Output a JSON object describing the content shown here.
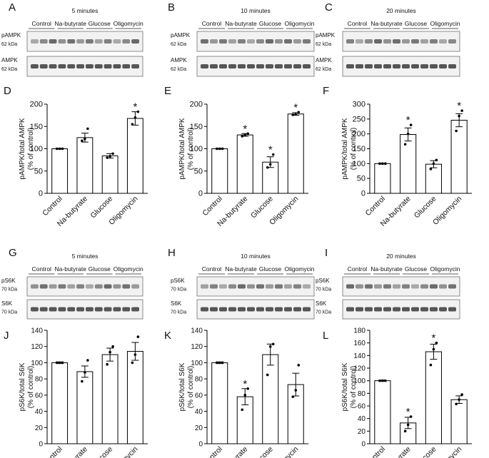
{
  "figure": {
    "kda_62": "62 kDa",
    "kda_70": "70 kDa",
    "groups": [
      "Control",
      "Na-butyrate",
      "Glucose",
      "Oligomycin"
    ],
    "blot_sets": [
      {
        "panel": "A",
        "time": "5 minutes",
        "bands": [
          "pAMPK",
          "AMPK"
        ],
        "kda": "62 kDa"
      },
      {
        "panel": "B",
        "time": "10 minutes",
        "bands": [
          "pAMPK",
          "AMPK"
        ],
        "kda": "62 kDa"
      },
      {
        "panel": "C",
        "time": "20 minutes",
        "bands": [
          "pAMPK",
          "AMPK"
        ],
        "kda": "62 kDa"
      },
      {
        "panel": "G",
        "time": "5 minutes",
        "bands": [
          "pS6K",
          "S6K"
        ],
        "kda": "70 kDa"
      },
      {
        "panel": "H",
        "time": "10 minutes",
        "bands": [
          "pS6K",
          "S6K"
        ],
        "kda": "70 kDa"
      },
      {
        "panel": "I",
        "time": "20 minutes",
        "bands": [
          "pS6K",
          "S6K"
        ],
        "kda": "70 kDa"
      }
    ]
  },
  "chart_data": [
    {
      "panel": "D",
      "type": "bar",
      "ylabel": [
        "pAMPK/total AMPK",
        "(% of control)"
      ],
      "categories": [
        "Control",
        "Na-butyrate",
        "Glucose",
        "Oligomycin"
      ],
      "ylim": [
        0,
        200
      ],
      "yticks": [
        0,
        50,
        100,
        150,
        200
      ],
      "values": [
        100,
        125,
        84,
        168
      ],
      "errors": [
        1,
        10,
        5,
        15
      ],
      "points": [
        [
          100,
          100,
          100
        ],
        [
          118,
          122,
          145
        ],
        [
          80,
          83,
          89
        ],
        [
          155,
          170,
          183
        ]
      ],
      "significant": [
        false,
        false,
        false,
        true
      ]
    },
    {
      "panel": "E",
      "type": "bar",
      "ylabel": [
        "pAMPK/total AMPK",
        "(% of control)"
      ],
      "categories": [
        "Control",
        "Na-butyrate",
        "Glucose",
        "Oligomycin"
      ],
      "ylim": [
        0,
        200
      ],
      "yticks": [
        0,
        50,
        100,
        150,
        200
      ],
      "values": [
        100,
        131,
        70,
        178
      ],
      "errors": [
        1,
        3,
        12,
        3
      ],
      "points": [
        [
          100,
          100,
          100
        ],
        [
          128,
          131,
          134
        ],
        [
          58,
          65,
          87
        ],
        [
          176,
          177,
          182
        ]
      ],
      "significant": [
        false,
        true,
        true,
        true
      ]
    },
    {
      "panel": "F",
      "type": "bar",
      "ylabel": [
        "pAMPK/total AMPK",
        "(% of control)"
      ],
      "categories": [
        "Control",
        "Na-butyrate",
        "Glucose",
        "Oligomycin"
      ],
      "ylim": [
        0,
        300
      ],
      "yticks": [
        0,
        50,
        100,
        150,
        200,
        250,
        300
      ],
      "values": [
        100,
        198,
        98,
        246
      ],
      "errors": [
        1,
        22,
        12,
        22
      ],
      "points": [
        [
          100,
          100,
          100
        ],
        [
          165,
          200,
          230
        ],
        [
          82,
          100,
          112
        ],
        [
          210,
          260,
          278
        ]
      ],
      "significant": [
        false,
        true,
        false,
        true
      ]
    },
    {
      "panel": "J",
      "type": "bar",
      "ylabel": [
        "pS6K/total S6K",
        "(% of control)"
      ],
      "categories": [
        "Control",
        "Na-butyrate",
        "Glucose",
        "Oligomycin"
      ],
      "ylim": [
        0,
        140
      ],
      "yticks": [
        0,
        20,
        40,
        60,
        80,
        100,
        120,
        140
      ],
      "values": [
        100,
        89,
        110,
        114
      ],
      "errors": [
        1,
        7,
        8,
        11
      ],
      "points": [
        [
          100,
          100,
          100
        ],
        [
          77,
          88,
          103
        ],
        [
          98,
          113,
          120
        ],
        [
          100,
          110,
          132
        ]
      ],
      "significant": [
        false,
        false,
        false,
        false
      ]
    },
    {
      "panel": "K",
      "type": "bar",
      "ylabel": [
        "pS6K/total S6K",
        "(% of control)"
      ],
      "categories": [
        "Control",
        "Na-butyrate",
        "Glucose",
        "Oligomycin"
      ],
      "ylim": [
        0,
        140
      ],
      "yticks": [
        0,
        20,
        40,
        60,
        80,
        100,
        120,
        140
      ],
      "values": [
        100,
        58,
        110,
        73
      ],
      "errors": [
        1,
        10,
        13,
        14
      ],
      "points": [
        [
          100,
          100,
          100
        ],
        [
          42,
          60,
          68
        ],
        [
          85,
          120,
          123
        ],
        [
          58,
          66,
          97
        ]
      ],
      "significant": [
        false,
        true,
        false,
        false
      ]
    },
    {
      "panel": "L",
      "type": "bar",
      "ylabel": [
        "pS6K/total S6K",
        "(% of control)"
      ],
      "categories": [
        "Control",
        "Na-butyrate",
        "Glucose",
        "Oligomycin"
      ],
      "ylim": [
        0,
        180
      ],
      "yticks": [
        0,
        20,
        40,
        60,
        80,
        100,
        120,
        140,
        160,
        180
      ],
      "values": [
        100,
        33,
        146,
        70
      ],
      "errors": [
        1,
        9,
        12,
        6
      ],
      "points": [
        [
          100,
          100,
          100
        ],
        [
          20,
          30,
          43
        ],
        [
          125,
          150,
          160
        ],
        [
          63,
          70,
          78
        ]
      ],
      "significant": [
        false,
        true,
        true,
        false
      ]
    }
  ]
}
